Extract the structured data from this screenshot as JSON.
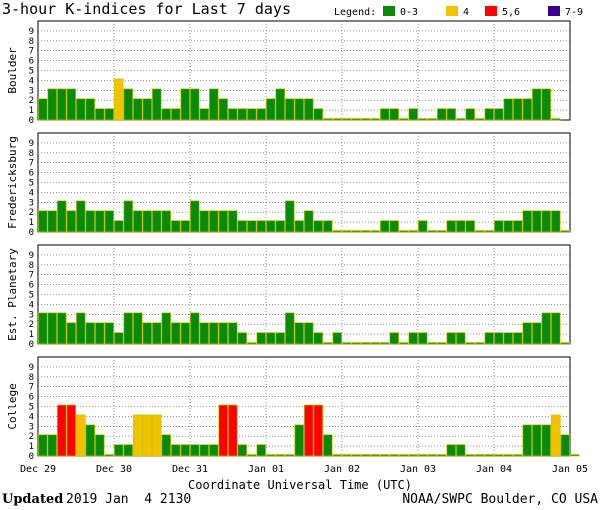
{
  "chart_data": {
    "type": "bar",
    "title": "3-hour K-indices for Last 7 days",
    "xlabel": "Coordinate Universal Time (UTC)",
    "ylabel": "",
    "ylim": [
      0,
      9
    ],
    "yticks": [
      "0",
      "1",
      "2",
      "3",
      "4",
      "5",
      "6",
      "7",
      "8",
      "9"
    ],
    "x_date_labels": [
      "Dec 29",
      "Dec 30",
      "Dec 31",
      "Jan 01",
      "Jan 02",
      "Jan 03",
      "Jan 04",
      "Jan 05"
    ],
    "grid": true,
    "legend_position": "top-right",
    "legend": {
      "label": "Legend:",
      "items": [
        {
          "label": "0-3",
          "color": "#0a8a0a"
        },
        {
          "label": "4",
          "color": "#f2c200"
        },
        {
          "label": "5,6",
          "color": "#ff0000"
        },
        {
          "label": "7-9",
          "color": "#3a0090"
        }
      ]
    },
    "colors": {
      "bar_outline": "#c8c800",
      "grid": "#555555",
      "frame": "#000000"
    },
    "series": [
      {
        "name": "Boulder",
        "values": [
          2,
          3,
          3,
          3,
          2,
          2,
          1,
          1,
          4,
          3,
          2,
          2,
          3,
          1,
          1,
          3,
          3,
          1,
          3,
          2,
          1,
          1,
          1,
          1,
          2,
          3,
          2,
          2,
          2,
          1,
          0,
          0,
          0,
          0,
          0,
          0,
          1,
          1,
          0,
          1,
          0,
          0,
          1,
          1,
          0,
          1,
          0,
          1,
          1,
          2,
          2,
          2,
          3,
          3,
          0
        ]
      },
      {
        "name": "Fredericksburg",
        "values": [
          2,
          2,
          3,
          2,
          3,
          2,
          2,
          2,
          1,
          3,
          2,
          2,
          2,
          2,
          1,
          1,
          3,
          2,
          2,
          2,
          2,
          1,
          1,
          1,
          1,
          1,
          3,
          1,
          2,
          1,
          1,
          0,
          0,
          0,
          0,
          0,
          1,
          1,
          0,
          0,
          1,
          0,
          0,
          1,
          1,
          1,
          0,
          0,
          1,
          1,
          1,
          2,
          2,
          2,
          2,
          0
        ]
      },
      {
        "name": "Est. Planetary",
        "values": [
          3,
          3,
          3,
          2,
          3,
          2,
          2,
          2,
          1,
          3,
          3,
          2,
          2,
          3,
          2,
          2,
          3,
          2,
          2,
          2,
          2,
          1,
          0,
          1,
          1,
          1,
          3,
          2,
          2,
          1,
          0,
          1,
          0,
          0,
          0,
          0,
          0,
          1,
          0,
          1,
          1,
          0,
          0,
          1,
          1,
          0,
          0,
          1,
          1,
          1,
          1,
          2,
          2,
          3,
          3,
          0
        ]
      },
      {
        "name": "College",
        "values": [
          2,
          2,
          5,
          5,
          4,
          3,
          2,
          0,
          1,
          1,
          4,
          4,
          4,
          2,
          1,
          1,
          1,
          1,
          1,
          5,
          5,
          1,
          0,
          1,
          0,
          0,
          0,
          3,
          5,
          5,
          2,
          0,
          0,
          0,
          0,
          0,
          0,
          0,
          0,
          0,
          0,
          0,
          0,
          1,
          1,
          0,
          0,
          0,
          0,
          0,
          0,
          3,
          3,
          3,
          4,
          2,
          0
        ]
      }
    ]
  },
  "footer": {
    "updated_label": "Updated",
    "updated_value": "2019 Jan  4 2130",
    "credit": "NOAA/SWPC Boulder, CO USA"
  }
}
